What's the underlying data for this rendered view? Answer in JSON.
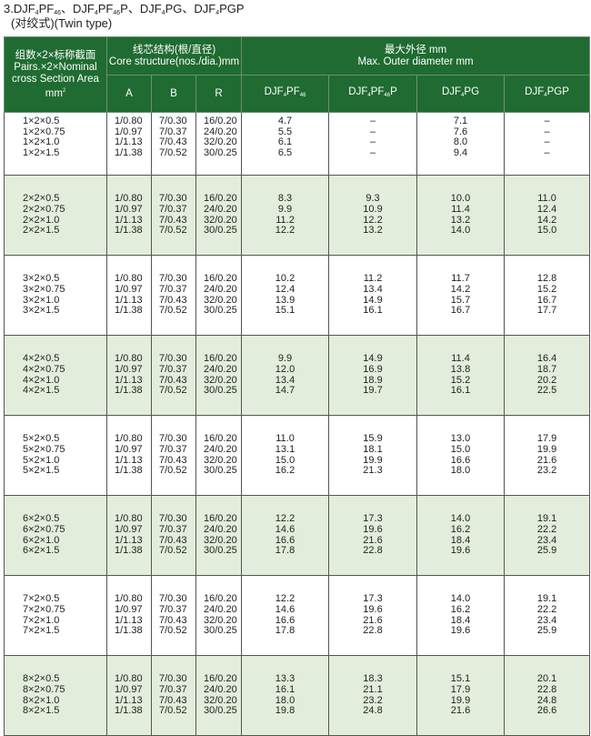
{
  "title": {
    "parts": [
      {
        "t": "3.DJF"
      },
      {
        "t": "4",
        "sub": true
      },
      {
        "t": "PF"
      },
      {
        "t": "46",
        "sub": true
      },
      {
        "t": "、DJF"
      },
      {
        "t": "4",
        "sub": true
      },
      {
        "t": "PF"
      },
      {
        "t": "46",
        "sub": true
      },
      {
        "t": "P、DJF"
      },
      {
        "t": "4",
        "sub": true
      },
      {
        "t": "PG、DJF"
      },
      {
        "t": "4",
        "sub": true
      },
      {
        "t": "PGP"
      }
    ],
    "subtitle": "(对绞式)(Twin type)"
  },
  "header": {
    "size_col": [
      "组数×2×标称截面",
      "Pairs.×2×Nominal",
      "cross Section Area",
      "mm"
    ],
    "size_col_sup": "2",
    "core": [
      "线芯结构(根/直径)",
      "Core structure(nos./dia.)mm"
    ],
    "core_cols": [
      "A",
      "B",
      "R"
    ],
    "outer": [
      "最大外径 mm",
      "Max. Outer diameter mm"
    ],
    "outer_cols": [
      [
        {
          "t": "DJF"
        },
        {
          "t": "4",
          "sub": true
        },
        {
          "t": "PF"
        },
        {
          "t": "46",
          "sub": true
        }
      ],
      [
        {
          "t": "DJF"
        },
        {
          "t": "4",
          "sub": true
        },
        {
          "t": "PF"
        },
        {
          "t": "46",
          "sub": true
        },
        {
          "t": "P"
        }
      ],
      [
        {
          "t": "DJF"
        },
        {
          "t": "4",
          "sub": true
        },
        {
          "t": "PG"
        }
      ],
      [
        {
          "t": "DJF"
        },
        {
          "t": "4",
          "sub": true
        },
        {
          "t": "PGP"
        }
      ]
    ]
  },
  "colors": {
    "header_bg": "#1f6b31",
    "alt_row_bg": "#e3eddb"
  },
  "groups": [
    {
      "size": [
        "1×2×0.5",
        "1×2×0.75",
        "1×2×1.0",
        "1×2×1.5"
      ],
      "A": [
        "1/0.80",
        "1/0.97",
        "1/1.13",
        "1/1.38"
      ],
      "B": [
        "7/0.30",
        "7/0.37",
        "7/0.43",
        "7/0.52"
      ],
      "R": [
        "16/0.20",
        "24/0.20",
        "32/0.20",
        "30/0.25"
      ],
      "d1": [
        "4.7",
        "5.5",
        "6.1",
        "6.5"
      ],
      "d2": [
        "–",
        "–",
        "–",
        "–"
      ],
      "d3": [
        "7.1",
        "7.6",
        "8.0",
        "9.4"
      ],
      "d4": [
        "–",
        "–",
        "–",
        "–"
      ]
    },
    {
      "size": [
        "2×2×0.5",
        "2×2×0.75",
        "2×2×1.0",
        "2×2×1.5"
      ],
      "A": [
        "1/0.80",
        "1/0.97",
        "1/1.13",
        "1/1.38"
      ],
      "B": [
        "7/0.30",
        "7/0.37",
        "7/0.43",
        "7/0.52"
      ],
      "R": [
        "16/0.20",
        "24/0.20",
        "32/0.20",
        "30/0.25"
      ],
      "d1": [
        "8.3",
        "9.9",
        "11.2",
        "12.2"
      ],
      "d2": [
        "9.3",
        "10.9",
        "12.2",
        "13.2"
      ],
      "d3": [
        "10.0",
        "11.4",
        "13.2",
        "14.0"
      ],
      "d4": [
        "11.0",
        "12.4",
        "14.2",
        "15.0"
      ]
    },
    {
      "size": [
        "3×2×0.5",
        "3×2×0.75",
        "3×2×1.0",
        "3×2×1.5"
      ],
      "A": [
        "1/0.80",
        "1/0.97",
        "1/1.13",
        "1/1.38"
      ],
      "B": [
        "7/0.30",
        "7/0.37",
        "7/0.43",
        "7/0.52"
      ],
      "R": [
        "16/0.20",
        "24/0.20",
        "32/0.20",
        "30/0.25"
      ],
      "d1": [
        "10.2",
        "12.4",
        "13.9",
        "15.1"
      ],
      "d2": [
        "11.2",
        "13.4",
        "14.9",
        "16.1"
      ],
      "d3": [
        "11.7",
        "14.2",
        "15.7",
        "16.7"
      ],
      "d4": [
        "12.8",
        "15.2",
        "16.7",
        "17.7"
      ]
    },
    {
      "size": [
        "4×2×0.5",
        "4×2×0.75",
        "4×2×1.0",
        "4×2×1.5"
      ],
      "A": [
        "1/0.80",
        "1/0.97",
        "1/1.13",
        "1/1.38"
      ],
      "B": [
        "7/0.30",
        "7/0.37",
        "7/0.43",
        "7/0.52"
      ],
      "R": [
        "16/0.20",
        "24/0.20",
        "32/0.20",
        "30/0.25"
      ],
      "d1": [
        "9.9",
        "12.0",
        "13.4",
        "14.7"
      ],
      "d2": [
        "14.9",
        "16.9",
        "18.9",
        "19.7"
      ],
      "d3": [
        "11.4",
        "13.8",
        "15.2",
        "16.1"
      ],
      "d4": [
        "16.4",
        "18.7",
        "20.2",
        "22.5"
      ]
    },
    {
      "size": [
        "5×2×0.5",
        "5×2×0.75",
        "5×2×1.0",
        "5×2×1.5"
      ],
      "A": [
        "1/0.80",
        "1/0.97",
        "1/1.13",
        "1/1.38"
      ],
      "B": [
        "7/0.30",
        "7/0.37",
        "7/0.43",
        "7/0.52"
      ],
      "R": [
        "16/0.20",
        "24/0.20",
        "32/0.20",
        "30/0.25"
      ],
      "d1": [
        "11.0",
        "13.1",
        "15.0",
        "16.2"
      ],
      "d2": [
        "15.9",
        "18.1",
        "19.9",
        "21.3"
      ],
      "d3": [
        "13.0",
        "15.0",
        "16.6",
        "18.0"
      ],
      "d4": [
        "17.9",
        "19.9",
        "21.6",
        "23.2"
      ]
    },
    {
      "size": [
        "6×2×0.5",
        "6×2×0.75",
        "6×2×1.0",
        "6×2×1.5"
      ],
      "A": [
        "1/0.80",
        "1/0.97",
        "1/1.13",
        "1/1.38"
      ],
      "B": [
        "7/0.30",
        "7/0.37",
        "7/0.43",
        "7/0.52"
      ],
      "R": [
        "16/0.20",
        "24/0.20",
        "32/0.20",
        "30/0.25"
      ],
      "d1": [
        "12.2",
        "14.6",
        "16.6",
        "17.8"
      ],
      "d2": [
        "17.3",
        "19.6",
        "21.6",
        "22.8"
      ],
      "d3": [
        "14.0",
        "16.2",
        "18.4",
        "19.6"
      ],
      "d4": [
        "19.1",
        "22.2",
        "23.4",
        "25.9"
      ]
    },
    {
      "size": [
        "7×2×0.5",
        "7×2×0.75",
        "7×2×1.0",
        "7×2×1.5"
      ],
      "A": [
        "1/0.80",
        "1/0.97",
        "1/1.13",
        "1/1.38"
      ],
      "B": [
        "7/0.30",
        "7/0.37",
        "7/0.43",
        "7/0.52"
      ],
      "R": [
        "16/0.20",
        "24/0.20",
        "32/0.20",
        "30/0.25"
      ],
      "d1": [
        "12.2",
        "14.6",
        "16.6",
        "17.8"
      ],
      "d2": [
        "17.3",
        "19.6",
        "21.6",
        "22.8"
      ],
      "d3": [
        "14.0",
        "16.2",
        "18.4",
        "19.6"
      ],
      "d4": [
        "19.1",
        "22.2",
        "23.4",
        "25.9"
      ]
    },
    {
      "size": [
        "8×2×0.5",
        "8×2×0.75",
        "8×2×1.0",
        "8×2×1.5"
      ],
      "A": [
        "1/0.80",
        "1/0.97",
        "1/1.13",
        "1/1.38"
      ],
      "B": [
        "7/0.30",
        "7/0.37",
        "7/0.43",
        "7/0.52"
      ],
      "R": [
        "16/0.20",
        "24/0.20",
        "32/0.20",
        "30/0.25"
      ],
      "d1": [
        "13.3",
        "16.1",
        "18.0",
        "19.8"
      ],
      "d2": [
        "18.3",
        "21.1",
        "23.2",
        "24.8"
      ],
      "d3": [
        "15.1",
        "17.9",
        "19.9",
        "21.6"
      ],
      "d4": [
        "20.1",
        "22.8",
        "24.8",
        "26.6"
      ]
    }
  ]
}
